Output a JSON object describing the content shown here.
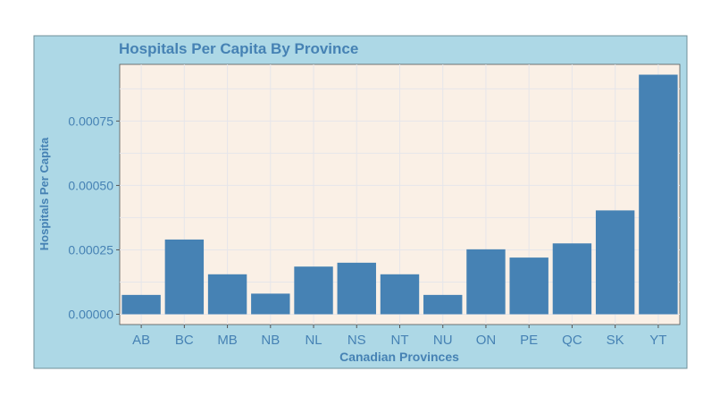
{
  "colors": {
    "panel_background": "#add8e6",
    "plot_background": "#faf0e6",
    "bar_fill": "#4682b4",
    "text": "#4682b4",
    "grid": "#e6e6ea"
  },
  "chart_data": {
    "type": "bar",
    "title": "Hospitals Per Capita By Province",
    "xlabel": "Canadian Provinces",
    "ylabel": "Hospitals Per Capita",
    "categories": [
      "AB",
      "BC",
      "MB",
      "NB",
      "NL",
      "NS",
      "NT",
      "NU",
      "ON",
      "PE",
      "QC",
      "SK",
      "YT"
    ],
    "values": [
      7.5e-05,
      0.00029,
      0.000155,
      8e-05,
      0.000185,
      0.0002,
      0.000155,
      7.5e-05,
      0.000252,
      0.00022,
      0.000275,
      0.000403,
      0.00093
    ],
    "yticks": [
      "0.00000",
      "0.00025",
      "0.00050",
      "0.00075"
    ],
    "ytick_values": [
      0,
      0.00025,
      0.0005,
      0.00075
    ],
    "ylim": [
      -4e-05,
      0.00097
    ],
    "grid": true,
    "legend": "none"
  }
}
